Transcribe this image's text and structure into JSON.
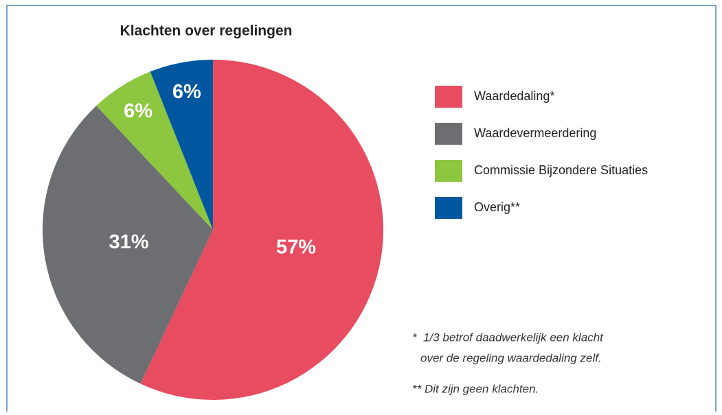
{
  "chart_data": {
    "type": "pie",
    "title": "Klachten over regelingen",
    "categories": [
      "Waardedaling*",
      "Waardevermeerdering",
      "Commissie Bijzondere Situaties",
      "Overig**"
    ],
    "values": [
      57,
      31,
      6,
      6
    ],
    "value_labels": [
      "57%",
      "31%",
      "6%",
      "6%"
    ],
    "colors": [
      "#e84c60",
      "#6d6e71",
      "#8dc63f",
      "#0057a0"
    ],
    "annotations": [
      "*  1/3 betrof daadwerkelijk een klacht",
      "over de regeling waardedaling zelf.",
      "** Dit zijn geen klachten."
    ]
  }
}
